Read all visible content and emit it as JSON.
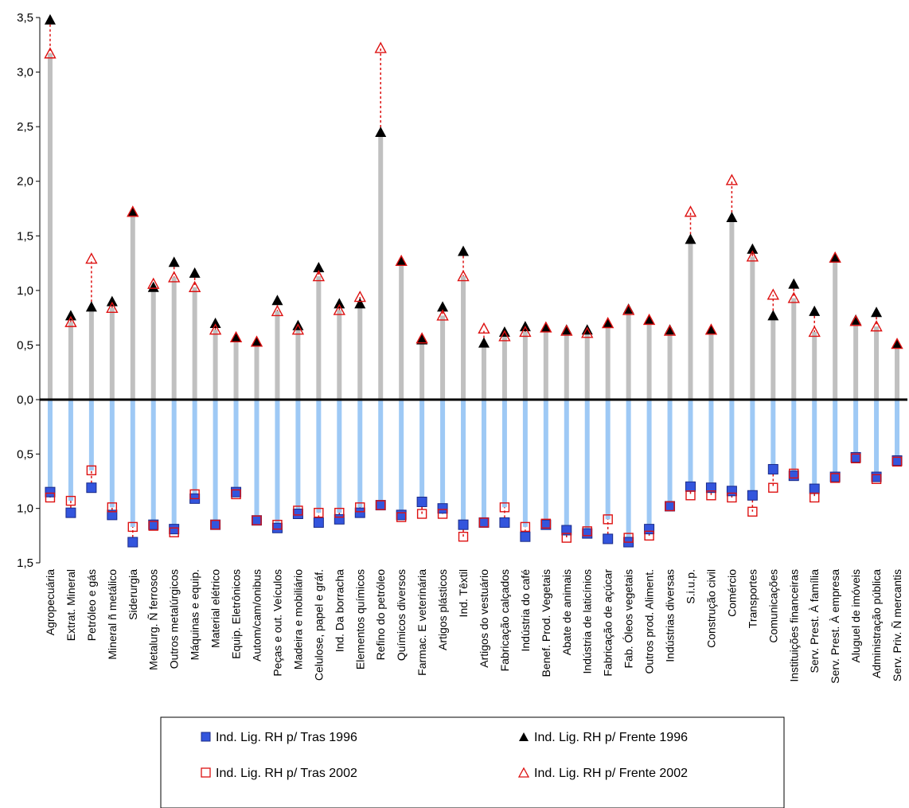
{
  "chart_data": {
    "type": "scatter",
    "title": "",
    "xlabel": "",
    "ylabel": "",
    "ylim_top": [
      0,
      3.5
    ],
    "ylim_bottom": [
      0,
      1.5
    ],
    "y_ticks_top": [
      "3,5",
      "3,0",
      "2,5",
      "2,0",
      "1,5",
      "1,0",
      "0,5",
      "0,0"
    ],
    "y_ticks_bottom": [
      "0,5",
      "1,0",
      "1,5"
    ],
    "grid": false,
    "legend_position": "bottom-center",
    "categories": [
      "Agropecuária",
      "Extrat. Mineral",
      "Petróleo e gás",
      "Mineral ñ metálico",
      "Siderurgia",
      "Metalurg. Ñ ferrosos",
      "Outros metalúrgicos",
      "Máquinas e equip.",
      "Material elétrico",
      "Equip. Eletrônicos",
      "Autom/cam/onibus",
      "Peças e out. Veículos",
      "Madeira e mobiliário",
      "Celulose, papel e gráf.",
      "Ind. Da borracha",
      "Elementos químicos",
      "Refino do petróleo",
      "Químicos diversos",
      "Farmac. E veterinária",
      "Artigos plásticos",
      "Ind. Têxtil",
      "Artigos do vestuário",
      "Fabricação calçados",
      "Indústria do café",
      "Benef. Prod. Vegetais",
      "Abate de animais",
      "Indústria de laticínios",
      "Fabricação de açúcar",
      "Fab. Óleos vegetais",
      "Outros prod. Aliment.",
      "Indústrias diversas",
      "S.i.u.p.",
      "Construção civil",
      "Comércio",
      "Transportes",
      "Comunicações",
      "Instituições financeiras",
      "Serv. Prest. À família",
      "Serv. Prest. À empresa",
      "Aluguel de imóveis",
      "Administração pública",
      "Serv. Priv. Ñ mercantis"
    ],
    "series": [
      {
        "name": "Ind. Lig. RH p/ Tras 1996",
        "marker": "square-filled",
        "color": "#3355dd",
        "values": [
          0.85,
          1.04,
          0.81,
          1.06,
          1.31,
          1.15,
          1.19,
          0.91,
          1.15,
          0.85,
          1.11,
          1.18,
          1.05,
          1.13,
          1.1,
          1.04,
          0.97,
          1.06,
          0.94,
          1.0,
          1.15,
          1.13,
          1.13,
          1.26,
          1.15,
          1.2,
          1.23,
          1.28,
          1.31,
          1.19,
          0.98,
          0.8,
          0.81,
          0.84,
          0.88,
          0.64,
          0.7,
          0.82,
          0.71,
          0.53,
          0.71,
          0.56
        ]
      },
      {
        "name": "Ind. Lig. RH p/ Frente 1996",
        "marker": "triangle-filled",
        "color": "#000000",
        "values": [
          3.48,
          0.77,
          0.85,
          0.9,
          1.72,
          1.03,
          1.26,
          1.16,
          0.7,
          0.57,
          0.53,
          0.91,
          0.68,
          1.21,
          0.88,
          0.88,
          2.45,
          1.27,
          0.55,
          0.85,
          1.36,
          0.52,
          0.62,
          0.67,
          0.66,
          0.64,
          0.64,
          0.7,
          0.83,
          0.73,
          0.64,
          1.47,
          0.64,
          1.67,
          1.38,
          0.77,
          1.06,
          0.81,
          1.3,
          0.73,
          0.8,
          0.51
        ]
      },
      {
        "name": "Ind. Lig. RH p/ Tras 2002",
        "marker": "square-open",
        "color": "#dd1111",
        "values": [
          0.9,
          0.93,
          0.65,
          0.99,
          1.17,
          1.16,
          1.22,
          0.87,
          1.15,
          0.87,
          1.11,
          1.15,
          1.02,
          1.04,
          1.04,
          0.99,
          0.97,
          1.08,
          1.05,
          1.05,
          1.26,
          1.13,
          0.99,
          1.17,
          1.14,
          1.27,
          1.21,
          1.1,
          1.27,
          1.25,
          0.98,
          0.88,
          0.88,
          0.9,
          1.03,
          0.81,
          0.68,
          0.9,
          0.72,
          0.54,
          0.73,
          0.57
        ]
      },
      {
        "name": "Ind. Lig. RH p/ Frente 2002",
        "marker": "triangle-open",
        "color": "#dd1111",
        "values": [
          3.17,
          0.71,
          1.29,
          0.84,
          1.72,
          1.06,
          1.12,
          1.03,
          0.64,
          0.57,
          0.53,
          0.81,
          0.64,
          1.13,
          0.82,
          0.94,
          3.22,
          1.27,
          0.56,
          0.77,
          1.13,
          0.65,
          0.58,
          0.62,
          0.66,
          0.63,
          0.61,
          0.7,
          0.82,
          0.73,
          0.63,
          1.72,
          0.64,
          2.01,
          1.31,
          0.96,
          0.93,
          0.62,
          1.3,
          0.72,
          0.67,
          0.51
        ]
      }
    ]
  }
}
